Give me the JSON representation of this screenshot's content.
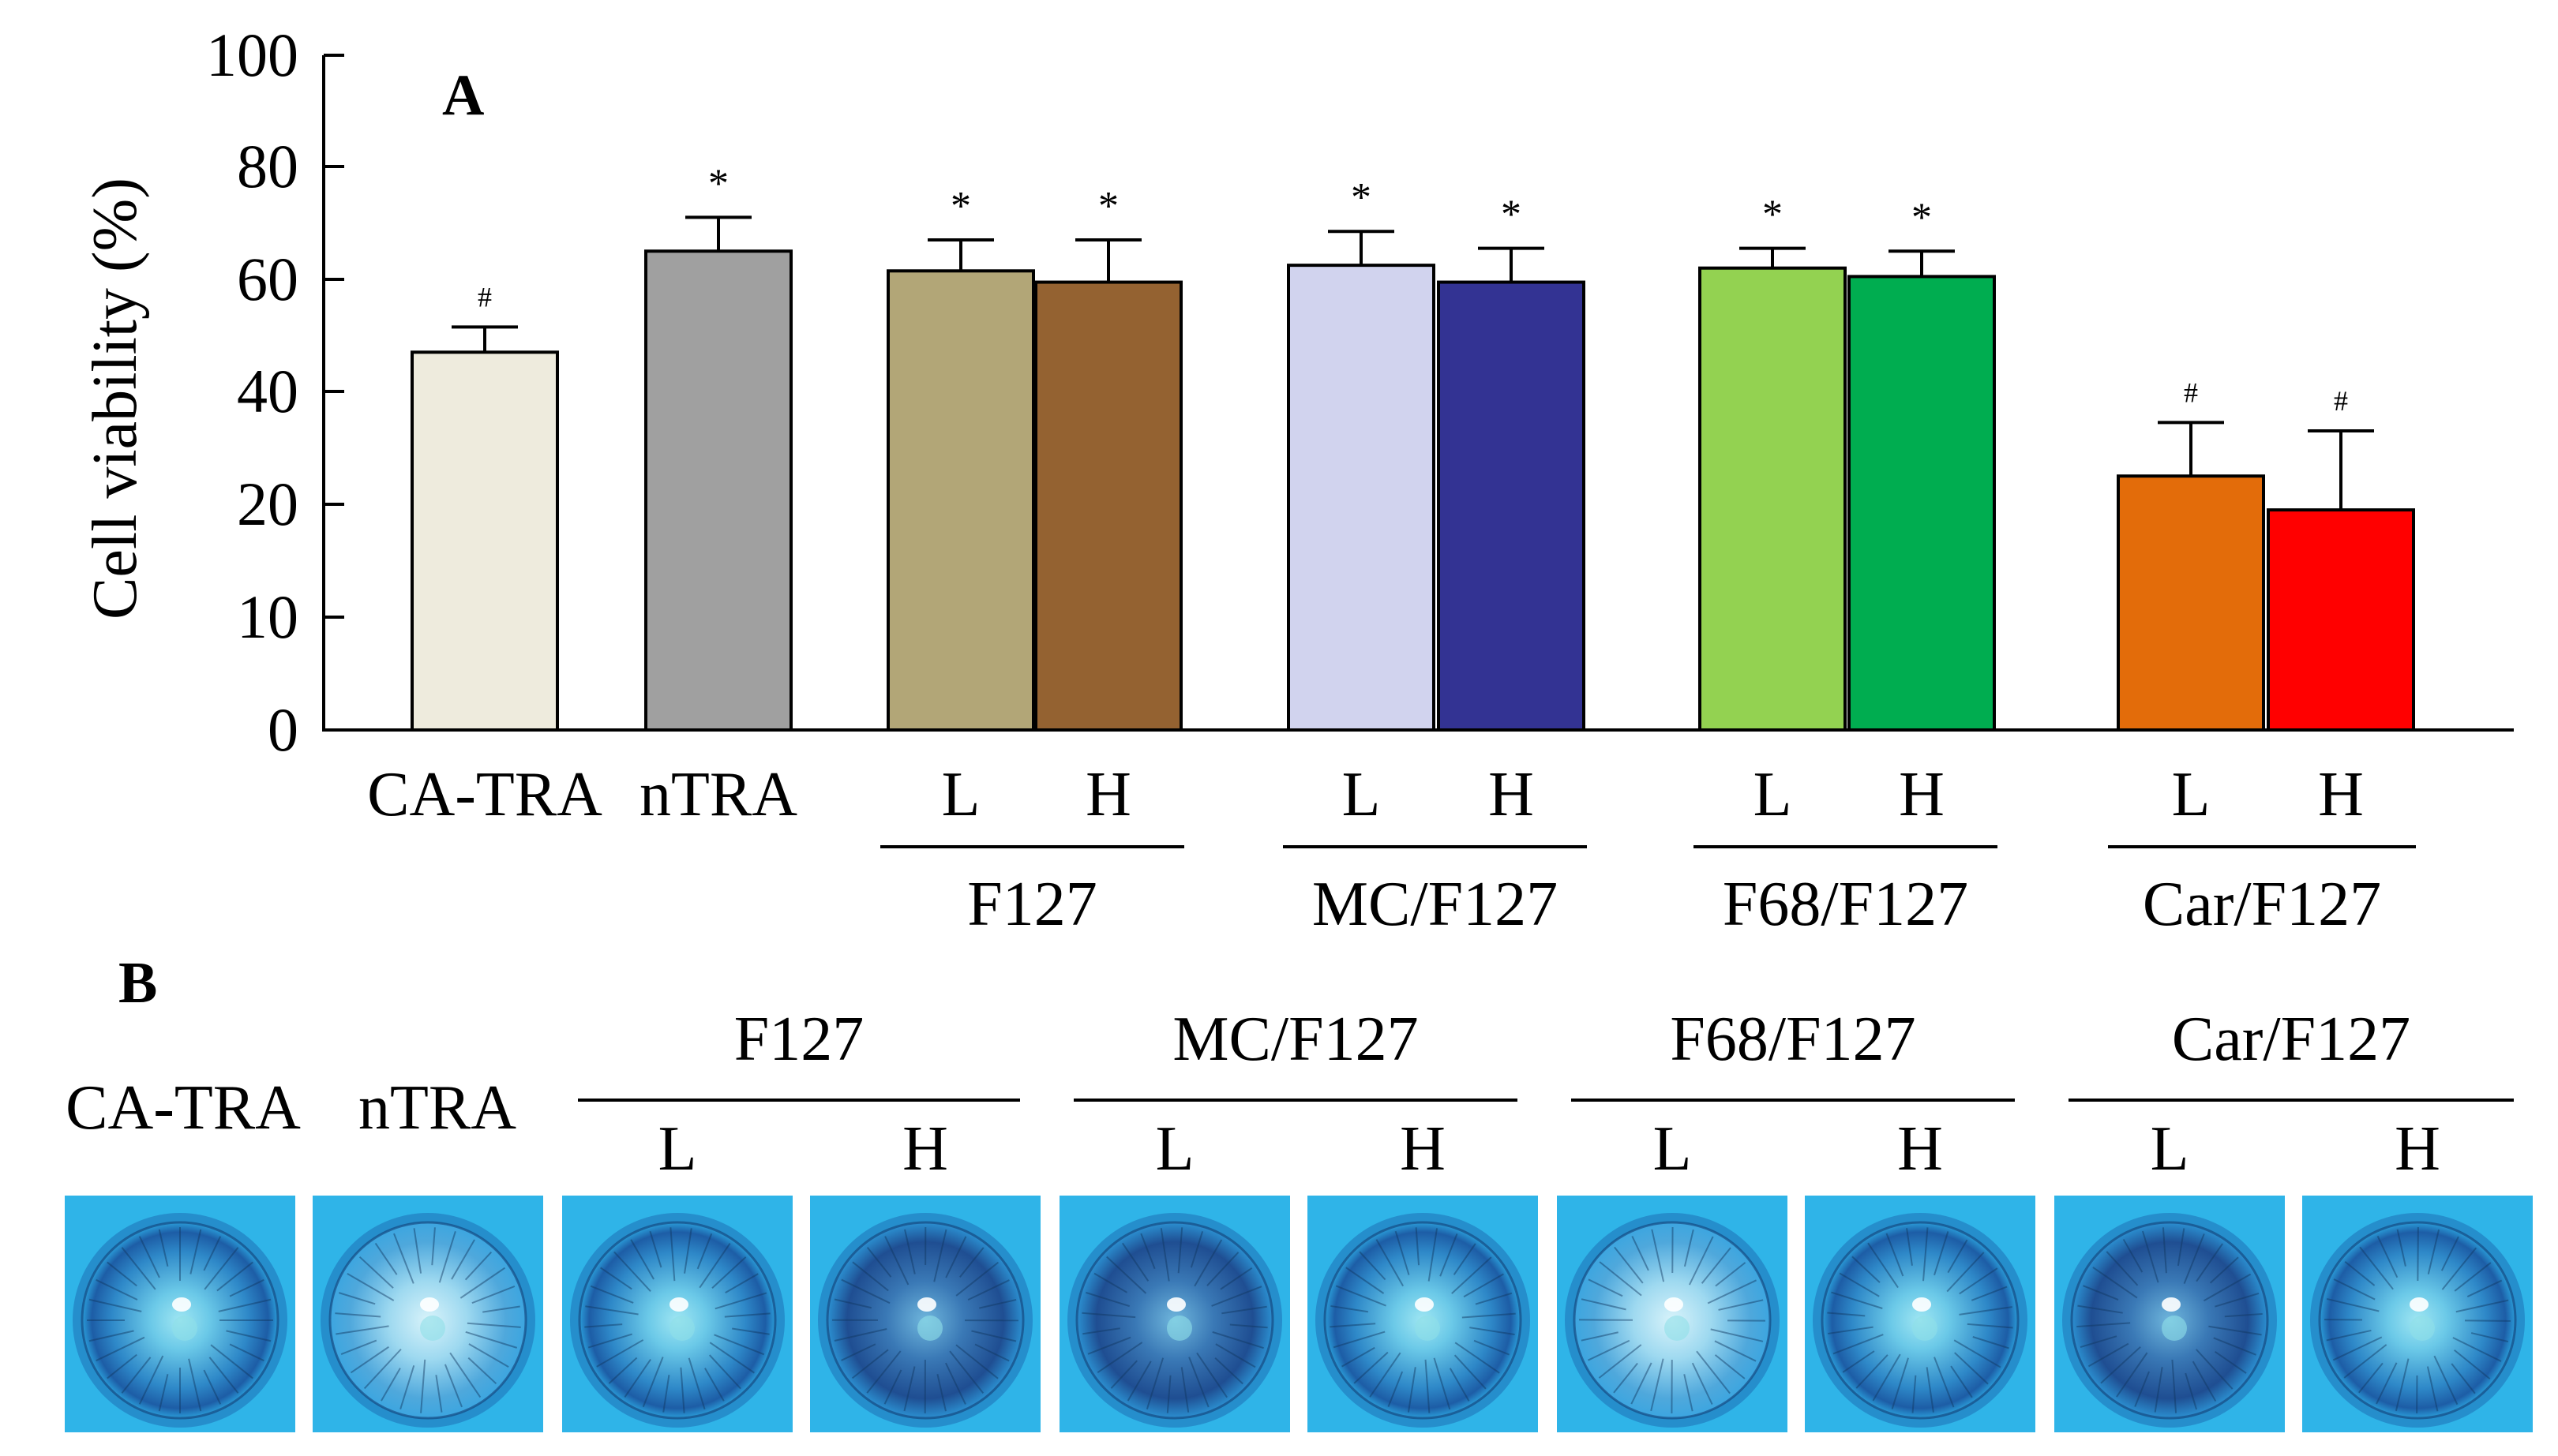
{
  "chart_data": {
    "type": "bar",
    "panel_label": "A",
    "ylabel": "Cell viability (%)",
    "y_ticks": [
      "0",
      "10",
      "20",
      "40",
      "60",
      "80",
      "100"
    ],
    "categories": [
      "CA-TRA",
      "nTRA",
      "L",
      "H",
      "L",
      "H",
      "L",
      "H",
      "L",
      "H"
    ],
    "groups": [
      {
        "label": "F127",
        "members": [
          2,
          3
        ]
      },
      {
        "label": "MC/F127",
        "members": [
          4,
          5
        ]
      },
      {
        "label": "F68/F127",
        "members": [
          6,
          7
        ]
      },
      {
        "label": "Car/F127",
        "members": [
          8,
          9
        ]
      }
    ],
    "values": [
      47,
      65,
      61.5,
      59.5,
      62.5,
      59.5,
      62,
      60.5,
      25,
      19.5
    ],
    "errors": [
      4.5,
      6,
      5.5,
      7.5,
      6,
      6,
      3.5,
      4.5,
      9.5,
      13.5
    ],
    "significance": [
      "#",
      "*",
      "*",
      "*",
      "*",
      "*",
      "*",
      "*",
      "#",
      "#"
    ],
    "colors": [
      "#EEEBDD",
      "#A0A0A0",
      "#B2A677",
      "#946231",
      "#D1D3EE",
      "#333393",
      "#93D251",
      "#00AD50",
      "#E36C0A",
      "#FF0000"
    ]
  },
  "panel_b": {
    "panel_label": "B",
    "single_labels": [
      "CA-TRA",
      "nTRA"
    ],
    "groups": [
      {
        "label": "F127",
        "sub": [
          "L",
          "H"
        ]
      },
      {
        "label": "MC/F127",
        "sub": [
          "L",
          "H"
        ]
      },
      {
        "label": "F68/F127",
        "sub": [
          "L",
          "H"
        ]
      },
      {
        "label": "Car/F127",
        "sub": [
          "L",
          "H"
        ]
      }
    ]
  }
}
